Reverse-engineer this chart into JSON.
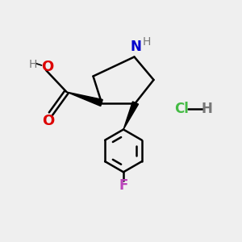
{
  "bg_color": "#efefef",
  "bond_color": "#000000",
  "N_color": "#0000cc",
  "O_color": "#dd0000",
  "F_color": "#bb44bb",
  "Cl_color": "#44bb44",
  "H_color": "#777777",
  "line_width": 1.8,
  "figsize": [
    3.0,
    3.0
  ],
  "dpi": 100,
  "xlim": [
    0,
    10
  ],
  "ylim": [
    0,
    10
  ]
}
